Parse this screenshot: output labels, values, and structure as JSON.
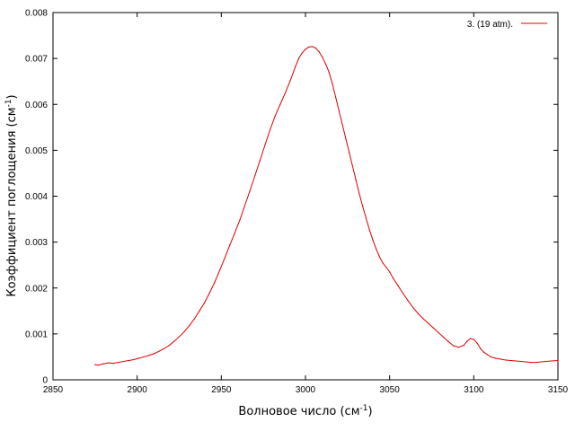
{
  "chart_data": {
    "type": "line",
    "title": "",
    "xlabel": "Волновое число (см",
    "xlabel_sup": "-1",
    "xlabel_end": ")",
    "ylabel": "Коэффициент поглощения (см",
    "ylabel_sup": "-1",
    "ylabel_end": ")",
    "xlim": [
      2850,
      3150
    ],
    "ylim": [
      0,
      0.008
    ],
    "x_ticks": [
      "2850",
      "2900",
      "2950",
      "3000",
      "3050",
      "3100",
      "3150"
    ],
    "y_ticks": [
      "0",
      "0.001",
      "0.002",
      "0.003",
      "0.004",
      "0.005",
      "0.006",
      "0.007",
      "0.008"
    ],
    "grid": false,
    "legend_position": "top-right",
    "colors": {
      "series": "#e00000",
      "axes": "#000000"
    },
    "series": [
      {
        "name": "3. (19 atm).",
        "x": [
          2875,
          2877,
          2880,
          2883,
          2886,
          2889,
          2892,
          2895,
          2898,
          2901,
          2904,
          2907,
          2910,
          2913,
          2916,
          2919,
          2922,
          2925,
          2928,
          2931,
          2934,
          2937,
          2940,
          2943,
          2946,
          2949,
          2952,
          2955,
          2958,
          2961,
          2964,
          2967,
          2970,
          2973,
          2976,
          2979,
          2982,
          2985,
          2988,
          2991,
          2994,
          2996,
          2998,
          3000,
          3002,
          3004,
          3006,
          3008,
          3010,
          3012,
          3014,
          3016,
          3018,
          3020,
          3022,
          3024,
          3026,
          3028,
          3030,
          3032,
          3034,
          3036,
          3038,
          3040,
          3042,
          3044,
          3046,
          3048,
          3050,
          3052,
          3055,
          3058,
          3061,
          3064,
          3067,
          3070,
          3073,
          3076,
          3079,
          3082,
          3085,
          3088,
          3091,
          3094,
          3096,
          3098,
          3100,
          3102,
          3104,
          3106,
          3108,
          3110,
          3113,
          3116,
          3119,
          3122,
          3125,
          3128,
          3131,
          3134,
          3137,
          3140,
          3143,
          3146,
          3150
        ],
        "y": [
          0.00033,
          0.00032,
          0.00035,
          0.00037,
          0.00036,
          0.00038,
          0.0004,
          0.00042,
          0.00044,
          0.00047,
          0.0005,
          0.00053,
          0.00057,
          0.00062,
          0.00068,
          0.00075,
          0.00084,
          0.00094,
          0.00105,
          0.00118,
          0.00133,
          0.0015,
          0.00168,
          0.00189,
          0.00212,
          0.00238,
          0.00265,
          0.00293,
          0.0032,
          0.00348,
          0.0038,
          0.00412,
          0.00445,
          0.00478,
          0.00512,
          0.00545,
          0.00575,
          0.006,
          0.00625,
          0.00652,
          0.00682,
          0.007,
          0.00712,
          0.0072,
          0.00725,
          0.00726,
          0.00723,
          0.00715,
          0.00703,
          0.00688,
          0.0067,
          0.00645,
          0.00615,
          0.00585,
          0.00555,
          0.00525,
          0.00495,
          0.00465,
          0.00435,
          0.00405,
          0.00378,
          0.00352,
          0.00327,
          0.00305,
          0.00285,
          0.00268,
          0.00254,
          0.00245,
          0.00235,
          0.00222,
          0.00205,
          0.00188,
          0.00172,
          0.00157,
          0.00144,
          0.00133,
          0.00123,
          0.00113,
          0.00103,
          0.00093,
          0.00083,
          0.00074,
          0.00071,
          0.00075,
          0.00084,
          0.0009,
          0.00088,
          0.0008,
          0.00068,
          0.0006,
          0.00055,
          0.0005,
          0.00047,
          0.00045,
          0.00043,
          0.00042,
          0.00041,
          0.0004,
          0.00039,
          0.00038,
          0.00038,
          0.00039,
          0.0004,
          0.00041,
          0.00042
        ]
      }
    ]
  }
}
